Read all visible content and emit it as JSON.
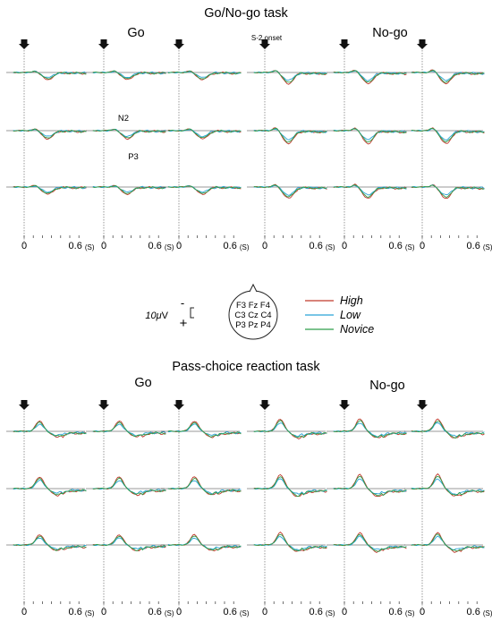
{
  "figure": {
    "colors": {
      "high": "#c0392b",
      "low": "#29a3d6",
      "novice": "#2e9e4a",
      "baseline": "#333333"
    },
    "onset_marker": "down-arrow-icon",
    "x_tick_labels": {
      "zero": "0",
      "end": "0.6",
      "unit": "(S)"
    },
    "annotations": {
      "s2_onset": "S-2 onset",
      "n2": "N2",
      "p3": "P3"
    },
    "scale_bar": {
      "value": "10",
      "mu": "μ",
      "unit": "V",
      "minus": "-",
      "plus": "+"
    },
    "electrode_rows": [
      "F3 Fz F4",
      "C3 Cz C4",
      "P3 Pz P4"
    ],
    "legend": [
      {
        "key": "high",
        "label": "High"
      },
      {
        "key": "low",
        "label": "Low"
      },
      {
        "key": "novice",
        "label": "Novice"
      }
    ]
  },
  "chart_data": [
    {
      "type": "line",
      "title": "Go/No-go task",
      "conditions": [
        "Go",
        "No-go"
      ],
      "x_unit": "s",
      "xlim": [
        0,
        0.6
      ],
      "electrodes": [
        [
          "F3",
          "Fz",
          "F4"
        ],
        [
          "C3",
          "Cz",
          "C4"
        ],
        [
          "P3",
          "Pz",
          "P4"
        ]
      ],
      "series": [
        "High",
        "Low",
        "Novice"
      ]
    },
    {
      "type": "line",
      "title": "Pass-choice reaction task",
      "conditions": [
        "Go",
        "No-go"
      ],
      "x_unit": "s",
      "xlim": [
        0,
        0.6
      ],
      "electrodes": [
        [
          "F3",
          "Fz",
          "F4"
        ],
        [
          "C3",
          "Cz",
          "C4"
        ],
        [
          "P3",
          "Pz",
          "P4"
        ]
      ],
      "series": [
        "High",
        "Low",
        "Novice"
      ]
    }
  ]
}
